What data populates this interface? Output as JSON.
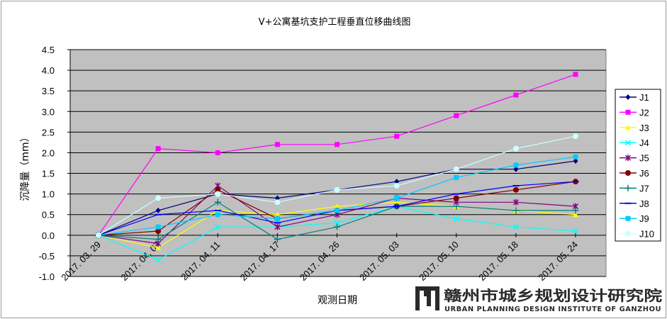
{
  "chart_data": {
    "type": "line",
    "title": "V+公寓基坑支护工程垂直位移曲线图",
    "xlabel": "观测日期",
    "ylabel": "沉降量（mm）",
    "categories": [
      "2017. 03. 29",
      "2017. 04. 07",
      "2017. 04. 11",
      "2017. 04. 17",
      "2017. 04. 26",
      "2017. 05. 03",
      "2017. 05. 10",
      "2017. 05. 18",
      "2017. 05. 24"
    ],
    "ylim": [
      -1.0,
      4.5
    ],
    "yticks": [
      "4.5",
      "4.0",
      "3.5",
      "3.0",
      "2.5",
      "2.0",
      "1.5",
      "1.0",
      "0.5",
      "0.0",
      "-0.5",
      "-1.0"
    ],
    "grid": "horizontal",
    "legend_position": "right",
    "plot_background": "#c0c0c0",
    "series": [
      {
        "name": "J1",
        "color": "#000080",
        "marker": "diamond",
        "values": [
          0,
          0.6,
          1.0,
          0.9,
          1.1,
          1.3,
          1.6,
          1.6,
          1.8
        ]
      },
      {
        "name": "J2",
        "color": "#ff00ff",
        "marker": "square",
        "values": [
          0,
          2.1,
          2.0,
          2.2,
          2.2,
          2.4,
          2.9,
          3.4,
          3.9
        ]
      },
      {
        "name": "J3",
        "color": "#ffff00",
        "marker": "triangle",
        "values": [
          0,
          -0.3,
          0.6,
          0.5,
          0.7,
          0.8,
          0.7,
          0.6,
          0.5
        ]
      },
      {
        "name": "J4",
        "color": "#00ffff",
        "marker": "x",
        "values": [
          0,
          -0.6,
          0.2,
          0.2,
          0.3,
          0.7,
          0.4,
          0.2,
          0.1
        ]
      },
      {
        "name": "J5",
        "color": "#800080",
        "marker": "star",
        "values": [
          0,
          -0.2,
          1.2,
          0.2,
          0.5,
          0.9,
          0.8,
          0.8,
          0.7
        ]
      },
      {
        "name": "J6",
        "color": "#800000",
        "marker": "circle",
        "values": [
          0,
          0.1,
          1.1,
          0.4,
          0.6,
          0.7,
          0.9,
          1.1,
          1.3
        ]
      },
      {
        "name": "J7",
        "color": "#008080",
        "marker": "plus",
        "values": [
          0,
          -0.1,
          0.8,
          -0.1,
          0.2,
          0.7,
          0.7,
          0.6,
          0.6
        ]
      },
      {
        "name": "J8",
        "color": "#0000ff",
        "marker": "dash",
        "values": [
          0,
          0.5,
          0.6,
          0.3,
          0.6,
          0.7,
          1.0,
          1.2,
          1.3
        ]
      },
      {
        "name": "J9",
        "color": "#00ccff",
        "marker": "square",
        "values": [
          0,
          0.2,
          0.5,
          0.4,
          0.6,
          0.9,
          1.4,
          1.7,
          1.9
        ]
      },
      {
        "name": "J10",
        "color": "#ccffff",
        "marker": "circle",
        "values": [
          0,
          0.9,
          1.0,
          0.8,
          1.1,
          1.2,
          1.6,
          2.1,
          2.4
        ]
      }
    ]
  },
  "watermark": {
    "name_cn": "赣州市城乡规划设计研究院",
    "name_en": "URBAN PLANNING DESIGN INSTITUTE OF GANZHOU",
    "color": "#2a2a2a"
  }
}
